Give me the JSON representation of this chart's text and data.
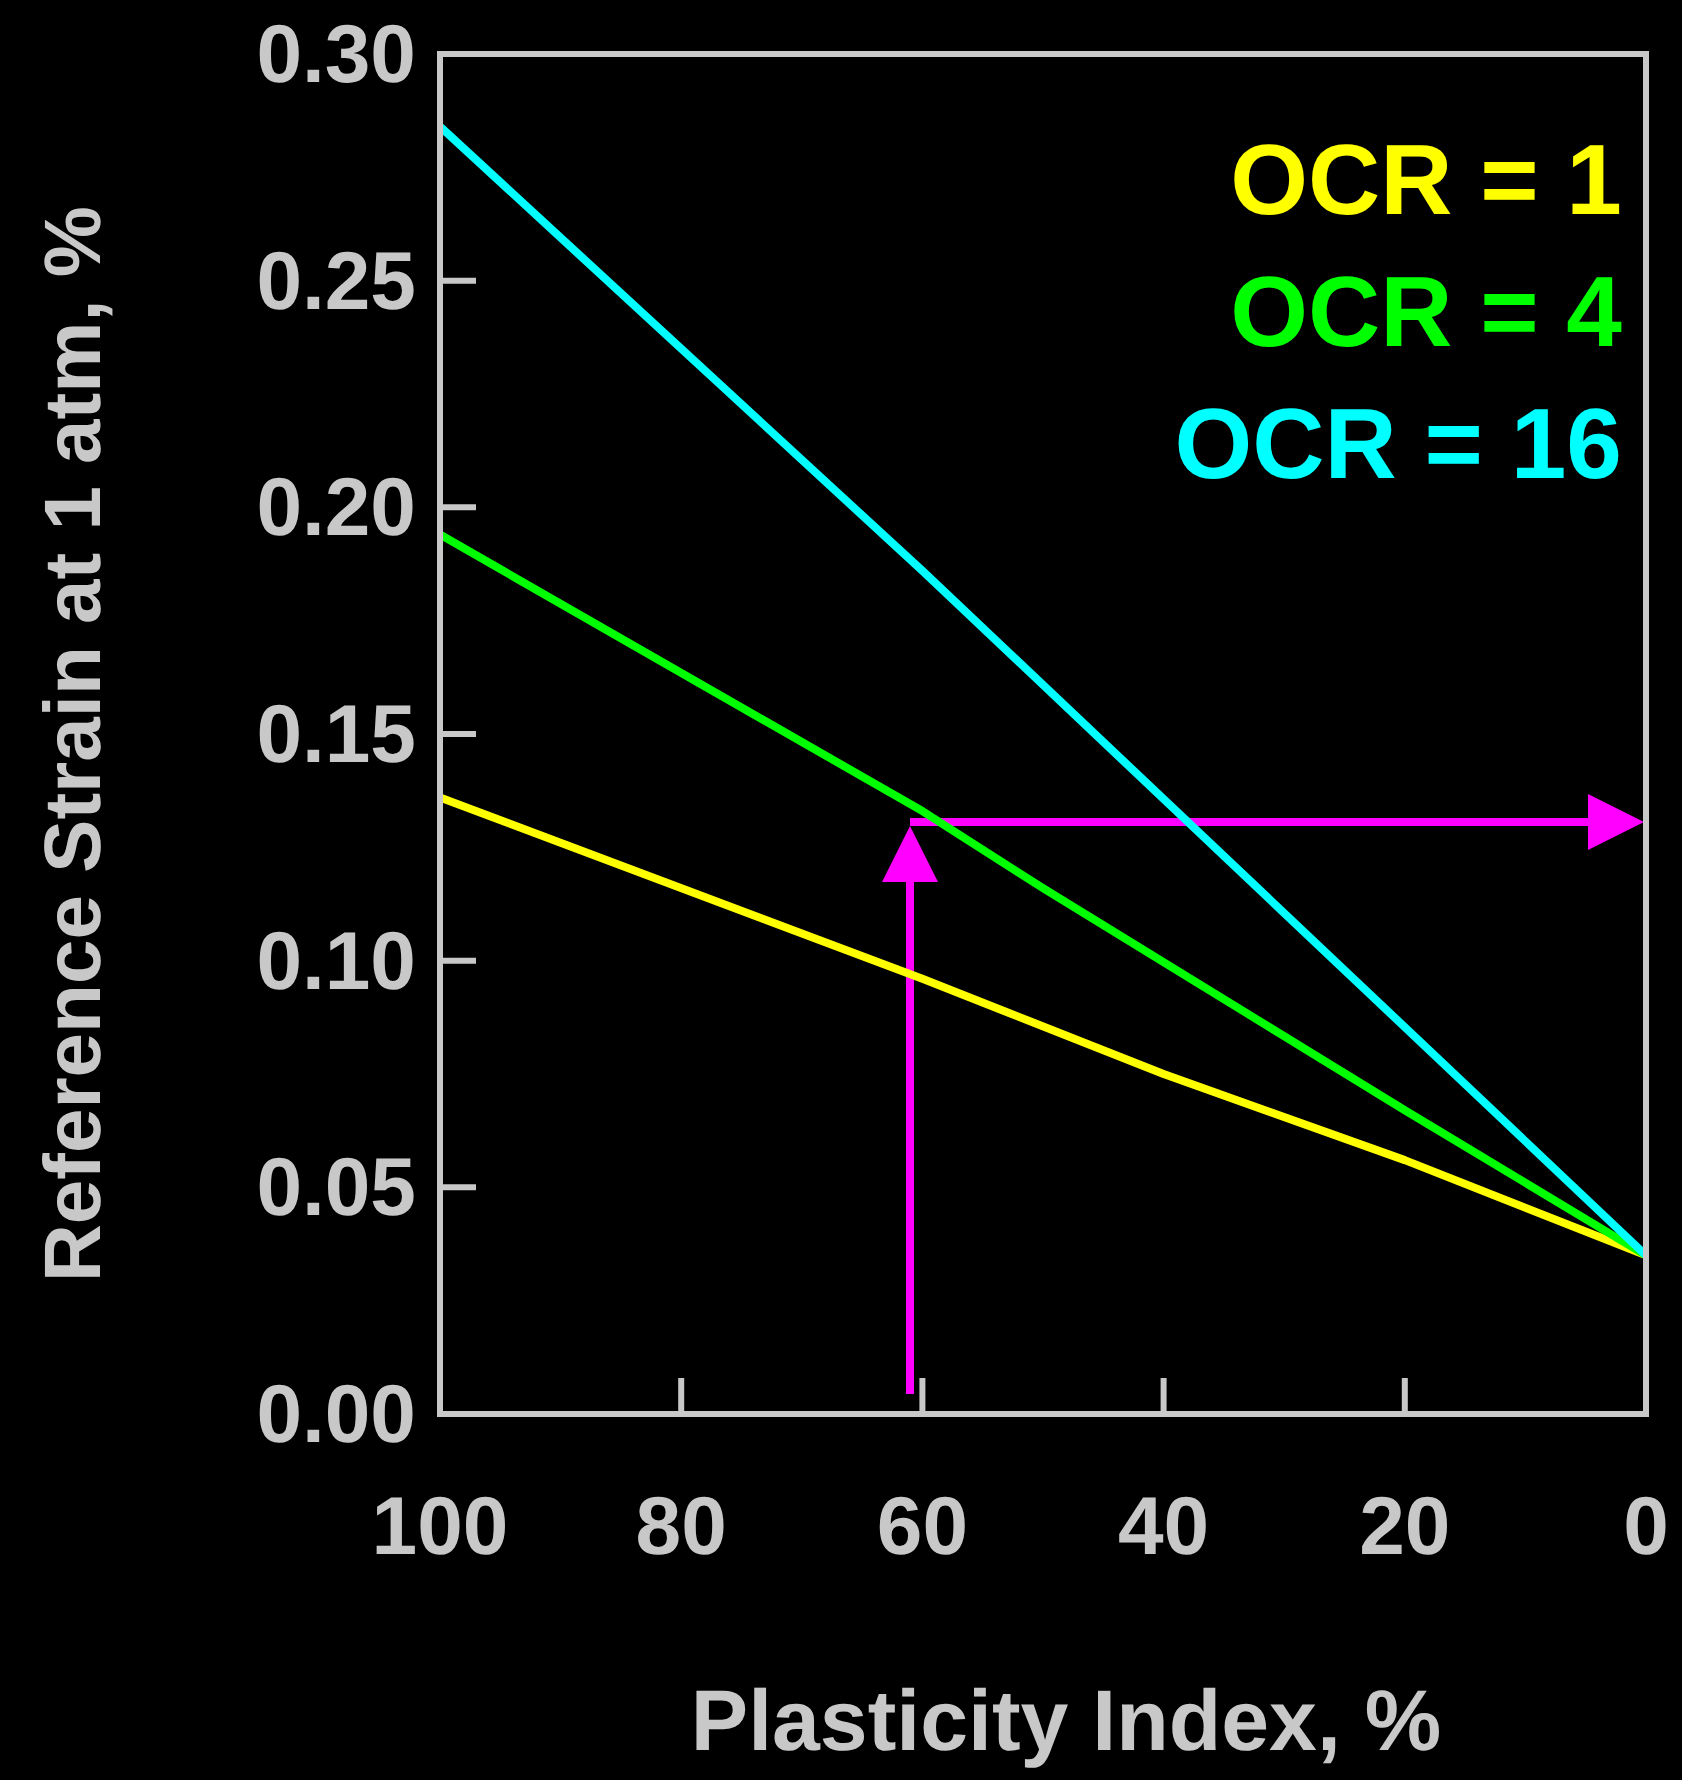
{
  "chart_data": {
    "type": "line",
    "xlabel": "Plasticity Index, %",
    "ylabel": "Reference Strain at 1 atm, %",
    "xlim": [
      100,
      0
    ],
    "xticks": [
      100,
      80,
      60,
      40,
      20,
      0
    ],
    "ylim": [
      0,
      0.3
    ],
    "yticks": [
      {
        "value": 0,
        "label": "0.00"
      },
      {
        "value": 0.05,
        "label": "0.05"
      },
      {
        "value": 0.1,
        "label": "0.10"
      },
      {
        "value": 0.15,
        "label": "0.15"
      },
      {
        "value": 0.2,
        "label": "0.20"
      },
      {
        "value": 0.25,
        "label": "0.25"
      },
      {
        "value": 0.3,
        "label": "0.30"
      }
    ],
    "grid": false,
    "legend": "top right",
    "series": [
      {
        "name": "OCR = 1",
        "color": "#ffff00",
        "x": [
          100,
          60,
          40,
          20,
          0
        ],
        "values": [
          0.136,
          0.096,
          0.075,
          0.056,
          0.035
        ]
      },
      {
        "name": "OCR = 4",
        "color": "#00ff00",
        "x": [
          100,
          60,
          50,
          20,
          0
        ],
        "values": [
          0.194,
          0.133,
          0.116,
          0.067,
          0.035
        ]
      },
      {
        "name": "OCR = 16",
        "color": "#00ffff",
        "x": [
          100,
          60,
          0
        ],
        "values": [
          0.284,
          0.186,
          0.035
        ]
      }
    ]
  }
}
